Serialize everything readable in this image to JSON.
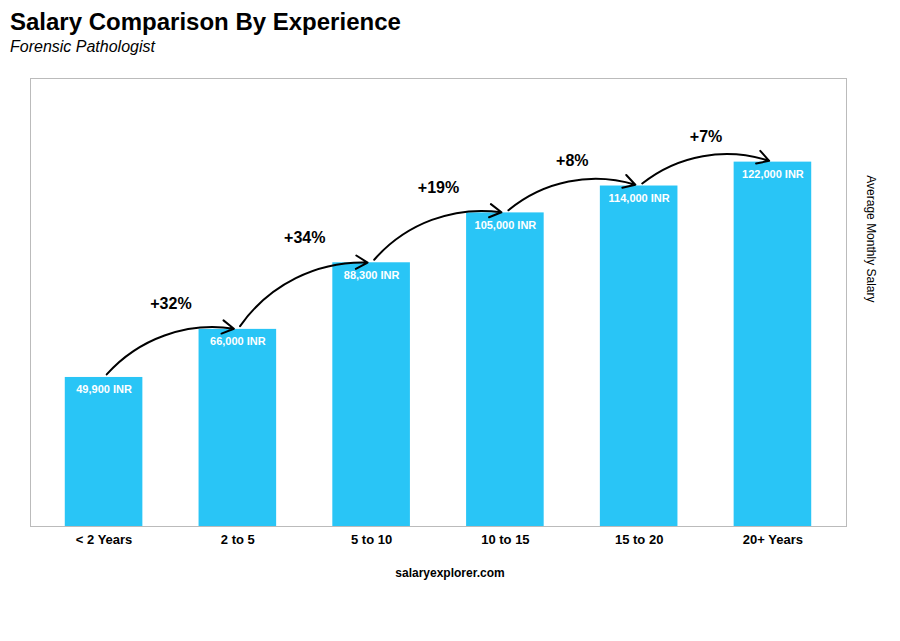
{
  "chart_data": {
    "type": "bar",
    "title": "Salary Comparison By Experience",
    "subtitle": "Forensic Pathologist",
    "ylabel": "Average Monthly Salary",
    "categories": [
      "< 2 Years",
      "2 to 5",
      "5 to 10",
      "10 to 15",
      "15 to 20",
      "20+ Years"
    ],
    "values": [
      49900,
      66000,
      88300,
      105000,
      114000,
      122000
    ],
    "value_labels": [
      "49,900 INR",
      "66,000 INR",
      "88,300 INR",
      "105,000 INR",
      "114,000 INR",
      "122,000 INR"
    ],
    "data_labels": true,
    "color": "#29c5f6",
    "ylim": [
      0,
      150000
    ],
    "tick_labels": "x",
    "annotations": [
      "+32%",
      "+34%",
      "+19%",
      "+8%",
      "+7%"
    ],
    "footer": [
      "salary",
      "explorer.com"
    ]
  }
}
